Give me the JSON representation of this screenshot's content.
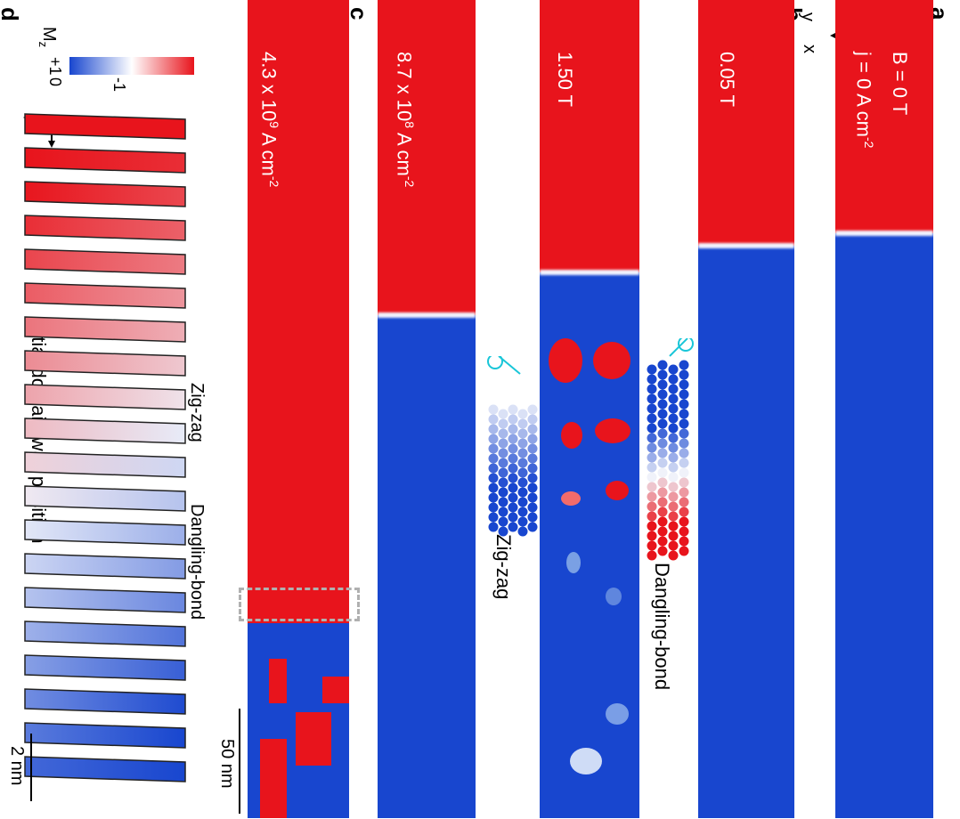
{
  "panels": {
    "a": {
      "letter": "a",
      "line1": "j = 0 A cm",
      "line1_sup": "-2",
      "line2": "B = 0 T",
      "title": "Initial domain wall position"
    },
    "b": {
      "letter": "b",
      "top_label": "0.05 T",
      "bottom_label": "1.50 T",
      "inset_top": "Dangling-bond",
      "inset_bottom": "Zig-zag"
    },
    "c": {
      "letter": "c",
      "top_label_base": "8.7 x 10",
      "top_label_exp": "8",
      "top_label_unit": " A cm",
      "top_label_unit_exp": "-2",
      "bottom_label_base": "4.3 x 10",
      "bottom_label_exp": "9",
      "bottom_label_unit": " A cm",
      "bottom_label_unit_exp": "-2",
      "scalebar": "50 nm"
    },
    "d": {
      "letter": "d",
      "colorbar_title": "M",
      "colorbar_sub": "z",
      "colorbar_max": "+1",
      "colorbar_mid": "0",
      "colorbar_min": "-1",
      "label_zigzag": "Zig-zag",
      "label_dangling": "Dangling-bond",
      "scalebar": "2 nm"
    }
  },
  "axes": {
    "x": "x",
    "y": "y"
  },
  "colors": {
    "up": "#e8141c",
    "down": "#1846cf",
    "wall": "#f2f4ff",
    "accent": "#19c6d8"
  }
}
